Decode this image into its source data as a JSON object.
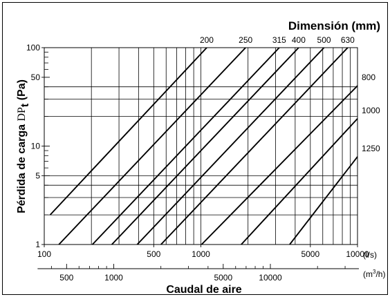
{
  "chart_data": {
    "type": "line",
    "title": "Dimensión (mm)",
    "ylabel_prefix": "Pérdida de carga ",
    "ylabel_symbol": "DP",
    "ylabel_sub": "t",
    "ylabel_unit": " (Pa)",
    "xlabel": "Caudal de aire",
    "x_unit_primary": "(l/s)",
    "x_unit_secondary_base": "(m",
    "x_unit_secondary_sup": "3",
    "x_unit_secondary_end": "/h)",
    "x_scale": "log",
    "y_scale": "log",
    "xlim": [
      100,
      10000
    ],
    "ylim": [
      1,
      100
    ],
    "grid": true,
    "x_ticks": [
      100,
      500,
      1000,
      5000,
      10000
    ],
    "x_tick_labels": [
      "100",
      "500",
      "1000",
      "5000",
      "10000"
    ],
    "x_grid": [
      200,
      300,
      400,
      500,
      600,
      700,
      800,
      900,
      1000,
      2000,
      3000,
      4000,
      5000,
      6000,
      7000,
      8000,
      9000
    ],
    "x2_ticks": [
      500,
      1000,
      5000,
      10000
    ],
    "x2_tick_labels": [
      "500",
      "1000",
      "5000",
      "10000"
    ],
    "x2_minor": [
      400,
      600,
      700,
      800,
      900,
      2000,
      3000,
      4000,
      6000,
      7000,
      8000,
      9000,
      20000,
      30000
    ],
    "y_ticks": [
      1,
      5,
      10,
      50,
      100
    ],
    "y_tick_labels": [
      "1",
      "5",
      "10",
      "50",
      "100"
    ],
    "y_grid": [
      2,
      3,
      4,
      5,
      20,
      30,
      40
    ],
    "series": [
      {
        "name": "200",
        "label_pos": "top",
        "x": [
          109,
          1090
        ],
        "y": [
          2,
          100
        ]
      },
      {
        "name": "250",
        "label_pos": "top",
        "x": [
          124,
          1930
        ],
        "y": [
          1,
          100
        ]
      },
      {
        "name": "315",
        "label_pos": "top",
        "x": [
          203,
          3165
        ],
        "y": [
          1,
          100
        ]
      },
      {
        "name": "400",
        "label_pos": "top",
        "x": [
          270,
          4210
        ],
        "y": [
          1,
          100
        ]
      },
      {
        "name": "500",
        "label_pos": "top",
        "x": [
          392,
          6110
        ],
        "y": [
          1,
          100
        ]
      },
      {
        "name": "630",
        "label_pos": "top",
        "x": [
          556,
          8660
        ],
        "y": [
          1,
          100
        ]
      },
      {
        "name": "800",
        "label_pos": "right",
        "x": [
          1010,
          10000
        ],
        "y": [
          1,
          41
        ]
      },
      {
        "name": "1000",
        "label_pos": "right",
        "x": [
          1810,
          10000
        ],
        "y": [
          1,
          19
        ]
      },
      {
        "name": "1250",
        "label_pos": "right",
        "x": [
          3690,
          10000
        ],
        "y": [
          1,
          7.8
        ]
      }
    ]
  }
}
